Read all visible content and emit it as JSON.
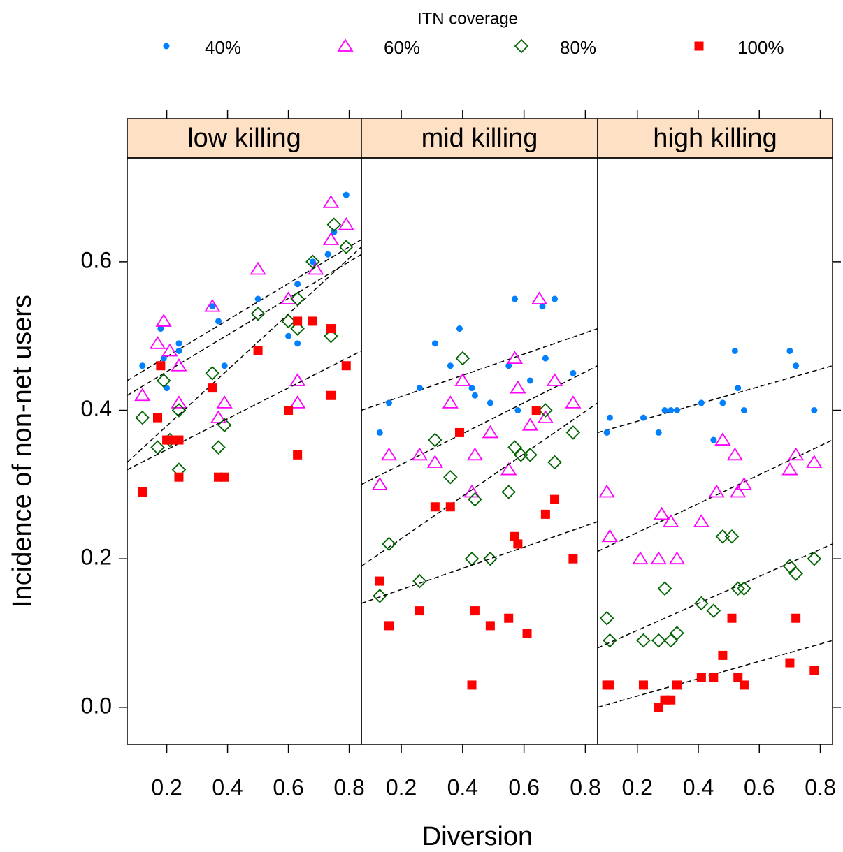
{
  "chart_data": {
    "type": "scatter",
    "legend_title": "ITN coverage",
    "xlabel": "Diversion",
    "ylabel": "Incidence of non-net users",
    "xlim": [
      0.07,
      0.84
    ],
    "xticks": [
      0.2,
      0.4,
      0.6,
      0.8
    ],
    "ylim": [
      -0.05,
      0.74
    ],
    "yticks": [
      {
        "value": 0,
        "label": "0.0"
      },
      0.2,
      0.4,
      0.6
    ],
    "strip_color": "#fee0c4",
    "series": [
      {
        "name": "40%",
        "color": "#0080ff",
        "marker": "dot"
      },
      {
        "name": "60%",
        "color": "#ff00ff",
        "marker": "triangle"
      },
      {
        "name": "80%",
        "color": "#006400",
        "marker": "diamond"
      },
      {
        "name": "100%",
        "color": "#ff0000",
        "marker": "square"
      }
    ],
    "panels": [
      {
        "title": "low killing",
        "groups": [
          {
            "x": [
              0.12,
              0.18,
              0.19,
              0.2,
              0.24,
              0.24,
              0.35,
              0.37,
              0.39,
              0.5,
              0.6,
              0.63,
              0.63,
              0.68,
              0.73,
              0.75,
              0.79
            ],
            "values": [
              0.46,
              0.51,
              0.47,
              0.43,
              0.49,
              0.48,
              0.54,
              0.52,
              0.46,
              0.55,
              0.5,
              0.57,
              0.49,
              0.6,
              0.61,
              0.64,
              0.69
            ],
            "fit": [
              0.44,
              0.63
            ]
          },
          {
            "x": [
              0.12,
              0.17,
              0.19,
              0.21,
              0.24,
              0.24,
              0.35,
              0.37,
              0.39,
              0.5,
              0.6,
              0.63,
              0.63,
              0.69,
              0.74,
              0.74,
              0.79
            ],
            "values": [
              0.42,
              0.49,
              0.52,
              0.48,
              0.46,
              0.41,
              0.54,
              0.39,
              0.41,
              0.59,
              0.55,
              0.44,
              0.41,
              0.59,
              0.63,
              0.68,
              0.65
            ],
            "fit": [
              0.42,
              0.61
            ]
          },
          {
            "x": [
              0.12,
              0.17,
              0.19,
              0.21,
              0.24,
              0.24,
              0.35,
              0.37,
              0.39,
              0.5,
              0.6,
              0.63,
              0.63,
              0.68,
              0.74,
              0.75,
              0.79
            ],
            "values": [
              0.39,
              0.35,
              0.44,
              0.36,
              0.4,
              0.32,
              0.45,
              0.35,
              0.38,
              0.53,
              0.52,
              0.51,
              0.55,
              0.6,
              0.5,
              0.65,
              0.62
            ],
            "fit": [
              0.33,
              0.62
            ]
          },
          {
            "x": [
              0.12,
              0.17,
              0.18,
              0.2,
              0.21,
              0.24,
              0.24,
              0.35,
              0.37,
              0.39,
              0.5,
              0.6,
              0.63,
              0.63,
              0.68,
              0.74,
              0.74,
              0.79
            ],
            "values": [
              0.29,
              0.39,
              0.46,
              0.36,
              0.36,
              0.36,
              0.31,
              0.43,
              0.31,
              0.31,
              0.48,
              0.4,
              0.52,
              0.34,
              0.52,
              0.42,
              0.51,
              0.46
            ],
            "fit": [
              0.32,
              0.48
            ]
          }
        ]
      },
      {
        "title": "mid killing",
        "groups": [
          {
            "x": [
              0.13,
              0.16,
              0.26,
              0.31,
              0.36,
              0.39,
              0.43,
              0.44,
              0.49,
              0.55,
              0.57,
              0.58,
              0.62,
              0.66,
              0.67,
              0.7,
              0.76
            ],
            "values": [
              0.37,
              0.41,
              0.43,
              0.49,
              0.46,
              0.51,
              0.43,
              0.42,
              0.41,
              0.46,
              0.55,
              0.4,
              0.44,
              0.54,
              0.47,
              0.55,
              0.45
            ],
            "fit": [
              0.4,
              0.51
            ]
          },
          {
            "x": [
              0.13,
              0.16,
              0.26,
              0.31,
              0.36,
              0.4,
              0.44,
              0.43,
              0.49,
              0.55,
              0.57,
              0.58,
              0.62,
              0.65,
              0.67,
              0.7,
              0.76
            ],
            "values": [
              0.3,
              0.34,
              0.34,
              0.33,
              0.41,
              0.44,
              0.34,
              0.29,
              0.37,
              0.32,
              0.47,
              0.43,
              0.38,
              0.55,
              0.39,
              0.44,
              0.41
            ],
            "fit": [
              0.3,
              0.46
            ]
          },
          {
            "x": [
              0.13,
              0.16,
              0.26,
              0.31,
              0.36,
              0.4,
              0.43,
              0.44,
              0.49,
              0.55,
              0.57,
              0.59,
              0.62,
              0.67,
              0.7,
              0.76
            ],
            "values": [
              0.15,
              0.22,
              0.17,
              0.36,
              0.31,
              0.47,
              0.2,
              0.28,
              0.2,
              0.29,
              0.35,
              0.34,
              0.34,
              0.4,
              0.33,
              0.37
            ],
            "fit": [
              0.19,
              0.41
            ]
          },
          {
            "x": [
              0.13,
              0.16,
              0.26,
              0.31,
              0.36,
              0.39,
              0.43,
              0.44,
              0.49,
              0.55,
              0.57,
              0.58,
              0.61,
              0.64,
              0.67,
              0.7,
              0.76
            ],
            "values": [
              0.17,
              0.11,
              0.13,
              0.27,
              0.27,
              0.37,
              0.03,
              0.13,
              0.11,
              0.12,
              0.23,
              0.22,
              0.1,
              0.4,
              0.26,
              0.28,
              0.2
            ],
            "fit": [
              0.14,
              0.25
            ]
          }
        ]
      },
      {
        "title": "high killing",
        "groups": [
          {
            "x": [
              0.1,
              0.11,
              0.22,
              0.27,
              0.29,
              0.31,
              0.33,
              0.41,
              0.45,
              0.48,
              0.52,
              0.53,
              0.55,
              0.7,
              0.72,
              0.78
            ],
            "values": [
              0.37,
              0.39,
              0.39,
              0.37,
              0.4,
              0.4,
              0.4,
              0.41,
              0.36,
              0.41,
              0.48,
              0.43,
              0.4,
              0.48,
              0.46,
              0.4
            ],
            "fit": [
              0.37,
              0.46
            ]
          },
          {
            "x": [
              0.1,
              0.11,
              0.21,
              0.27,
              0.28,
              0.31,
              0.33,
              0.41,
              0.46,
              0.48,
              0.52,
              0.53,
              0.55,
              0.7,
              0.72,
              0.78
            ],
            "values": [
              0.29,
              0.23,
              0.2,
              0.2,
              0.26,
              0.25,
              0.2,
              0.25,
              0.29,
              0.36,
              0.34,
              0.29,
              0.3,
              0.32,
              0.34,
              0.33
            ],
            "fit": [
              0.21,
              0.36
            ]
          },
          {
            "x": [
              0.1,
              0.11,
              0.22,
              0.27,
              0.29,
              0.31,
              0.33,
              0.41,
              0.45,
              0.48,
              0.51,
              0.53,
              0.55,
              0.7,
              0.72,
              0.78
            ],
            "values": [
              0.12,
              0.09,
              0.09,
              0.09,
              0.16,
              0.09,
              0.1,
              0.14,
              0.13,
              0.23,
              0.23,
              0.16,
              0.16,
              0.19,
              0.18,
              0.2
            ],
            "fit": [
              0.08,
              0.22
            ]
          },
          {
            "x": [
              0.1,
              0.11,
              0.22,
              0.27,
              0.29,
              0.31,
              0.33,
              0.41,
              0.45,
              0.48,
              0.51,
              0.53,
              0.55,
              0.7,
              0.72,
              0.78
            ],
            "values": [
              0.03,
              0.03,
              0.03,
              0,
              0.01,
              0.01,
              0.03,
              0.04,
              0.04,
              0.07,
              0.12,
              0.04,
              0.03,
              0.06,
              0.12,
              0.05
            ],
            "fit": [
              0,
              0.09
            ]
          }
        ]
      }
    ]
  }
}
